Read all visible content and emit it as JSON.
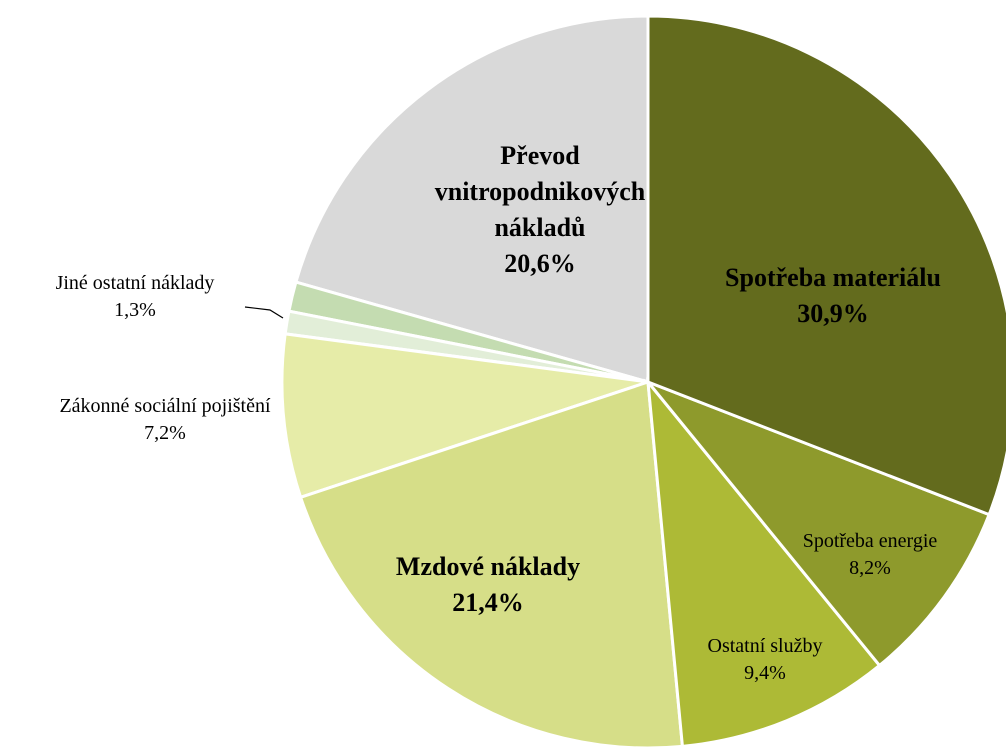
{
  "chart_data": {
    "type": "pie",
    "categories": [
      "Spotřeba materiálu",
      "Spotřeba energie",
      "Ostatní služby",
      "Mzdové náklady",
      "Zákonné sociální pojištění",
      null,
      "Jiné ostatní náklady",
      "Převod vnitropodnikových nákladů"
    ],
    "values": [
      30.9,
      8.2,
      9.4,
      21.4,
      7.2,
      1.0,
      1.3,
      20.6
    ],
    "value_labels": [
      "30,9%",
      "8,2%",
      "9,4%",
      "21,4%",
      "7,2%",
      null,
      "1,3%",
      "20,6%"
    ],
    "colors": [
      "#636b1d",
      "#8e9a2c",
      "#adba36",
      "#d6de88",
      "#e6eca8",
      "#e2eed8",
      "#c4dcb1",
      "#d9d9d9"
    ]
  }
}
